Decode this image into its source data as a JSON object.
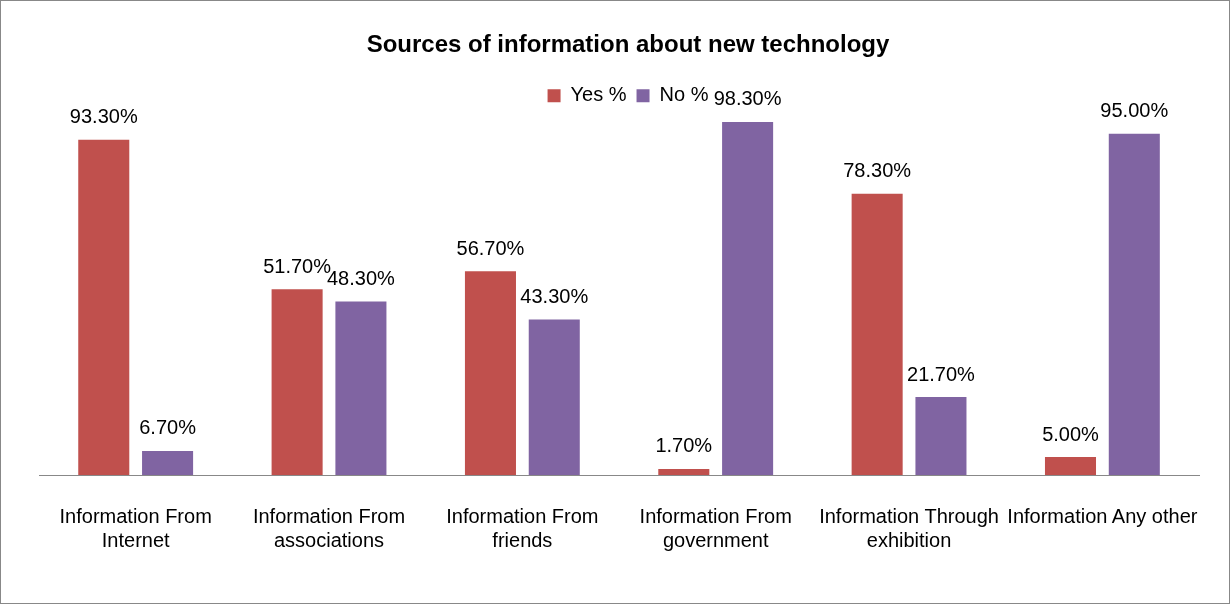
{
  "chart_data": {
    "type": "bar",
    "title": "Sources of information about new technology",
    "categories": [
      "Information From Internet",
      "Information From associations",
      "Information From friends",
      "Information From government",
      "Information Through exhibition",
      "Information Any other"
    ],
    "series": [
      {
        "name": "Yes %",
        "color": "#c0504d",
        "values": [
          93.3,
          51.7,
          56.7,
          1.7,
          78.3,
          5.0
        ],
        "value_labels": [
          "93.30%",
          "51.70%",
          "56.70%",
          "1.70%",
          "78.30%",
          "5.00%"
        ]
      },
      {
        "name": "No %",
        "color": "#8064a2",
        "values": [
          6.7,
          48.3,
          43.3,
          98.3,
          21.7,
          95.0
        ],
        "value_labels": [
          "6.70%",
          "48.30%",
          "43.30%",
          "98.30%",
          "21.70%",
          "95.00%"
        ]
      }
    ],
    "legend": "top",
    "grid": false,
    "tick_labels": "x"
  }
}
